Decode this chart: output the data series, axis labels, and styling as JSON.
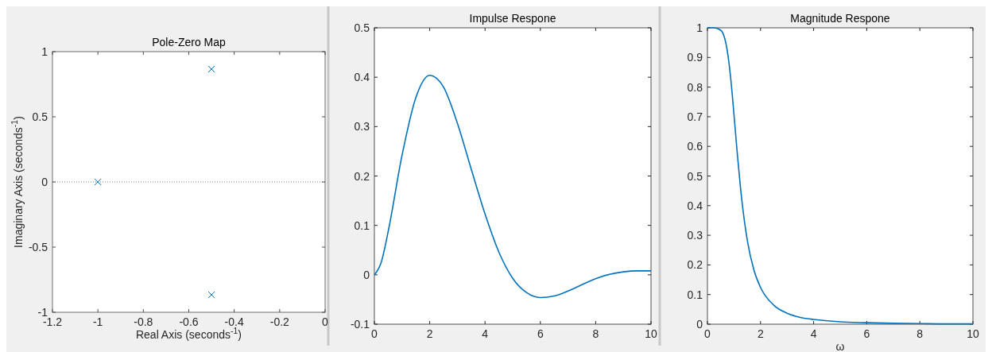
{
  "chart_data": [
    {
      "type": "scatter",
      "title": "Pole-Zero Map",
      "xlabel": "Real Axis (seconds$^{-1}$)",
      "ylabel": "Imaginary Axis (seconds$^{-1}$)",
      "marker": "cross",
      "xlim": [
        -1.2,
        0
      ],
      "ylim": [
        -1,
        1
      ],
      "xticks": [
        -1.2,
        -1,
        -0.8,
        -0.6,
        -0.4,
        -0.2,
        0
      ],
      "yticks": [
        -1,
        -0.5,
        0,
        0.5,
        1
      ],
      "series": [
        {
          "color": "#0072bd",
          "x": [
            -1,
            -0.5,
            -0.5
          ],
          "values": [
            0,
            0.866,
            -0.866
          ]
        }
      ],
      "ref_lines": [
        {
          "axis": "y",
          "value": 0,
          "color": "#808080",
          "line_style": "dotted"
        }
      ]
    },
    {
      "type": "line",
      "title": "Impulse Respone",
      "marker": "none",
      "xlim": [
        0,
        10
      ],
      "ylim": [
        -0.1,
        0.5
      ],
      "xticks": [
        0,
        2,
        4,
        6,
        8,
        10
      ],
      "yticks": [
        -0.1,
        0,
        0.1,
        0.2,
        0.3,
        0.4,
        0.5
      ],
      "series": [
        {
          "color": "#0072bd",
          "x": [
            0,
            0.25,
            0.5,
            1,
            1.5,
            2,
            2.5,
            3,
            3.5,
            4,
            4.5,
            5,
            5.5,
            6,
            6.5,
            7,
            7.5,
            8,
            8.5,
            9,
            9.5,
            10
          ],
          "values": [
            0,
            0.026,
            0.088,
            0.242,
            0.359,
            0.404,
            0.38,
            0.307,
            0.214,
            0.123,
            0.046,
            -0.007,
            -0.036,
            -0.046,
            -0.043,
            -0.033,
            -0.02,
            -0.008,
            0.001,
            0.006,
            0.008,
            0.008
          ]
        }
      ]
    },
    {
      "type": "line",
      "title": "Magnitude Respone",
      "xlabel": "ω",
      "marker": "none",
      "xlim": [
        0,
        10
      ],
      "ylim": [
        0,
        1
      ],
      "xticks": [
        0,
        2,
        4,
        6,
        8,
        10
      ],
      "yticks": [
        0,
        0.1,
        0.2,
        0.3,
        0.4,
        0.5,
        0.6,
        0.7,
        0.8,
        0.9,
        1
      ],
      "series": [
        {
          "color": "#0072bd",
          "x": [
            0,
            0.25,
            0.5,
            0.75,
            0.875,
            1,
            1.125,
            1.25,
            1.5,
            1.75,
            2,
            2.5,
            3,
            3.5,
            4,
            5,
            6,
            7,
            8,
            9,
            10
          ],
          "values": [
            1,
            1,
            0.992,
            0.921,
            0.831,
            0.707,
            0.575,
            0.456,
            0.284,
            0.183,
            0.124,
            0.064,
            0.037,
            0.023,
            0.016,
            0.008,
            0.005,
            0.003,
            0.002,
            0.001,
            0.001
          ]
        }
      ]
    }
  ]
}
